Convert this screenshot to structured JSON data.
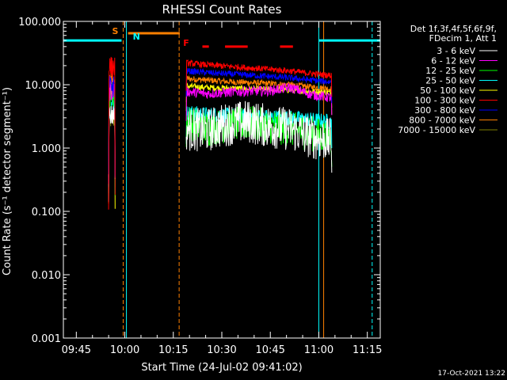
{
  "chart_data": {
    "type": "line",
    "title": "RHESSI Count Rates",
    "xlabel": "Start Time (24-Jul-02 09:41:02)",
    "ylabel": "Count Rate (s⁻¹ detector segment⁻¹)",
    "yscale": "log",
    "ylim": [
      0.001,
      100.0
    ],
    "xlim": [
      "09:41",
      "11:19"
    ],
    "x_tick_labels": [
      "09:45",
      "10:00",
      "10:15",
      "10:30",
      "10:45",
      "11:00",
      "11:15"
    ],
    "x_tick_minutes": [
      585,
      600,
      615,
      630,
      645,
      660,
      675
    ],
    "y_tick_labels": [
      "0.001",
      "0.010",
      "0.100",
      "1.000",
      "10.000",
      "100.000"
    ],
    "y_tick_values": [
      0.001,
      0.01,
      0.1,
      1,
      10,
      100
    ],
    "legend_header": [
      "Det 1f,3f,4f,5f,6f,9f,",
      "FDecim 1, Att 1"
    ],
    "legend_placement": "right",
    "series": [
      {
        "name": "3 - 6 keV",
        "color": "#ffffff",
        "v1": 3.5,
        "v2": [
          2.0,
          1.9,
          2.4,
          2.6,
          2.2,
          2.0,
          1.5,
          1.3
        ],
        "noise": 0.35
      },
      {
        "name": "6 - 12 keV",
        "color": "#ff00ff",
        "v1": 9.0,
        "v2": [
          7.8,
          7.2,
          7.6,
          7.9,
          8.0,
          9.0,
          7.0,
          6.2
        ],
        "noise": 0.08
      },
      {
        "name": "12 - 25 keV",
        "color": "#00ff00",
        "v1": 7.0,
        "v2": [
          2.6,
          2.0,
          2.3,
          2.5,
          2.2,
          2.0,
          1.7,
          1.4
        ],
        "noise": 0.28
      },
      {
        "name": "25 - 50 keV",
        "color": "#00ffff",
        "v1": 5.0,
        "v2": [
          3.6,
          3.4,
          3.3,
          3.2,
          3.1,
          3.0,
          2.8,
          2.6
        ],
        "noise": 0.12
      },
      {
        "name": "50 - 100 keV",
        "color": "#ffff00",
        "v1": 8.0,
        "v2": [
          9.5,
          9.0,
          8.8,
          8.6,
          8.4,
          8.2,
          7.8,
          7.5
        ],
        "noise": 0.05
      },
      {
        "name": "100 - 300 keV",
        "color": "#ff0000",
        "v1": 20.0,
        "v2": [
          22.0,
          20.5,
          19.5,
          18.5,
          17.5,
          16.5,
          15.0,
          14.0
        ],
        "noise": 0.05
      },
      {
        "name": "300 - 800 keV",
        "color": "#0000ff",
        "v1": 10.0,
        "v2": [
          16.5,
          15.5,
          14.8,
          14.2,
          13.5,
          12.8,
          11.8,
          11.0
        ],
        "noise": 0.05
      },
      {
        "name": "800 - 7000 keV",
        "color": "#ff8000",
        "v1": 12.0,
        "v2": [
          12.5,
          11.8,
          11.2,
          10.8,
          10.4,
          10.0,
          9.2,
          8.6
        ],
        "noise": 0.05
      },
      {
        "name": "7000 - 15000 keV",
        "color": "#808000",
        "v1": 3.0,
        "v2": [
          0,
          0,
          0,
          0,
          0,
          0,
          0,
          0
        ],
        "noise": 0
      }
    ],
    "data_intervals": [
      {
        "start": "09:55",
        "end": "09:57"
      },
      {
        "start": "10:19",
        "end": "11:04"
      }
    ],
    "annotations": [
      {
        "label": "S",
        "minute": 599,
        "color": "#ff8000"
      },
      {
        "label": "N",
        "minute": 601,
        "color": "#00ffff"
      },
      {
        "label": "F",
        "minute": 621,
        "color": "#ff0000"
      }
    ],
    "night_bars": [
      {
        "start": 581,
        "end": 599,
        "value": 50,
        "color": "#00ffff"
      },
      {
        "start": 660,
        "end": 679,
        "value": 50,
        "color": "#00ffff"
      }
    ],
    "saa_bars": [
      {
        "start": 601,
        "end": 617,
        "value": 65,
        "color": "#ff8000"
      }
    ],
    "flare_bars": [
      {
        "start": 624,
        "end": 626,
        "value": 40,
        "color": "#ff0000"
      },
      {
        "start": 631,
        "end": 638,
        "value": 40,
        "color": "#ff0000"
      },
      {
        "start": 648,
        "end": 652,
        "value": 40,
        "color": "#ff0000"
      }
    ],
    "vertical_lines": [
      {
        "minute": 581,
        "style": "solid",
        "color": "#00ffff"
      },
      {
        "minute": 599.5,
        "style": "dashed",
        "color": "#ff8000"
      },
      {
        "minute": 600.5,
        "style": "solid",
        "color": "#00ffff"
      },
      {
        "minute": 616.8,
        "style": "dashed",
        "color": "#ff8000"
      },
      {
        "minute": 660,
        "style": "solid",
        "color": "#00ffff"
      },
      {
        "minute": 661.5,
        "style": "solid",
        "color": "#ff8000"
      },
      {
        "minute": 676.5,
        "style": "dashed",
        "color": "#00ffff"
      }
    ]
  },
  "timestamp": "17-Oct-2021 13:22"
}
